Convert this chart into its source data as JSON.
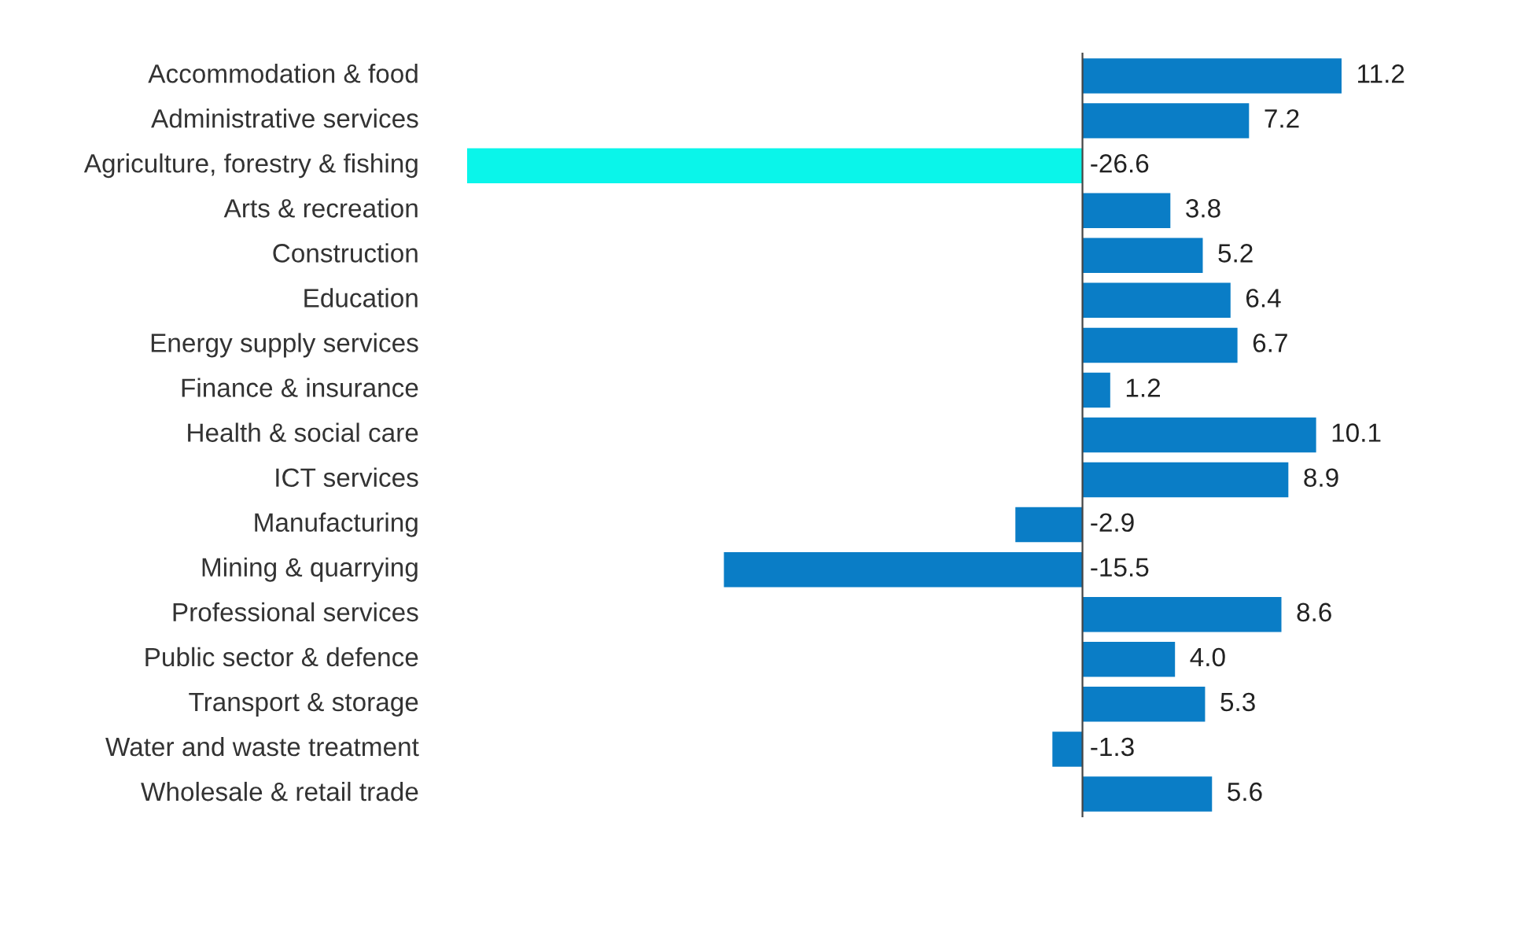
{
  "chart_data": {
    "type": "bar",
    "orientation": "horizontal",
    "categories": [
      "Accommodation & food",
      "Administrative services",
      "Agriculture, forestry & fishing",
      "Arts & recreation",
      "Construction",
      "Education",
      "Energy supply services",
      "Finance & insurance",
      "Health & social care",
      "ICT services",
      "Manufacturing",
      "Mining & quarrying",
      "Professional services",
      "Public sector & defence",
      "Transport & storage",
      "Water and waste treatment",
      "Wholesale & retail trade"
    ],
    "values": [
      11.2,
      7.2,
      -26.6,
      3.8,
      5.2,
      6.4,
      6.7,
      1.2,
      10.1,
      8.9,
      -2.9,
      -15.5,
      8.6,
      4.0,
      5.3,
      -1.3,
      5.6
    ],
    "colors": [
      "#0a7dc6",
      "#0a7dc6",
      "#0af5ea",
      "#0a7dc6",
      "#0a7dc6",
      "#0a7dc6",
      "#0a7dc6",
      "#0a7dc6",
      "#0a7dc6",
      "#0a7dc6",
      "#0a7dc6",
      "#0a7dc6",
      "#0a7dc6",
      "#0a7dc6",
      "#0a7dc6",
      "#0a7dc6",
      "#0a7dc6"
    ],
    "value_labels": [
      "11.2",
      "7.2",
      "-26.6",
      "3.8",
      "5.2",
      "6.4",
      "6.7",
      "1.2",
      "10.1",
      "8.9",
      "-2.9",
      "-15.5",
      "8.6",
      "4.0",
      "5.3",
      "-1.3",
      "5.6"
    ]
  }
}
